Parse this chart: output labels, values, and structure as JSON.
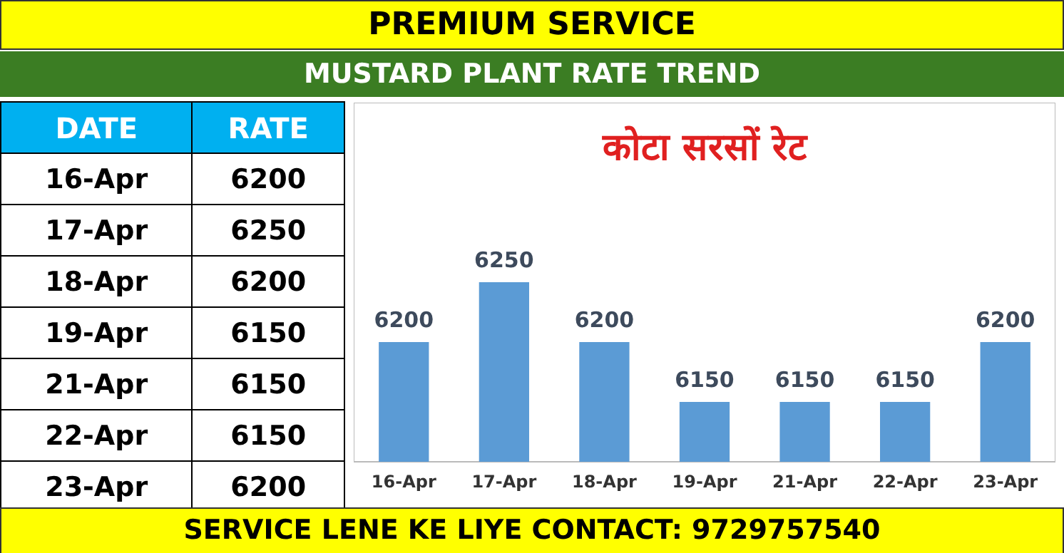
{
  "chart_data": {
    "type": "bar",
    "title": "PREMIUM SERVICE",
    "subtitle": "MUSTARD PLANT RATE TREND",
    "annotations": [
      "DATE",
      "RATE",
      "कोटा सरसों रेट",
      "SERVICE LENE KE LIYE CONTACT: 9729757540"
    ],
    "categories": [
      "16-Apr",
      "17-Apr",
      "18-Apr",
      "19-Apr",
      "21-Apr",
      "22-Apr",
      "23-Apr"
    ],
    "values": [
      6200,
      6250,
      6200,
      6150,
      6150,
      6150,
      6200
    ],
    "value_labels": [
      "6200",
      "6250",
      "6200",
      "6150",
      "6150",
      "6150",
      "6200"
    ],
    "color": "#5b9bd5",
    "ylim": [
      6100,
      6400
    ],
    "grid": false,
    "tick_labels": "x"
  }
}
